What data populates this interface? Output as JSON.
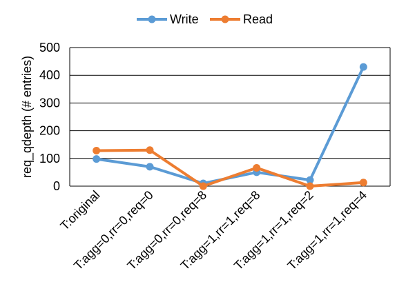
{
  "chart_data": {
    "type": "line",
    "title": "",
    "xlabel": "",
    "ylabel": "req_qdepth (# entries)",
    "ylim": [
      0,
      500
    ],
    "yticks": [
      0,
      100,
      200,
      300,
      400,
      500
    ],
    "grid": true,
    "legend_position": "top",
    "categories": [
      "T:original",
      "T:agg=0,rr=0,req=0",
      "T:agg=0,rr=0,req=8",
      "T:agg=1,rr=1,req=8",
      "T:agg=1,rr=1,req=2",
      "T:agg=1,rr=1,req=4"
    ],
    "series": [
      {
        "name": "Write",
        "color": "#5b9bd5",
        "values": [
          98,
          70,
          10,
          50,
          22,
          430
        ]
      },
      {
        "name": "Read",
        "color": "#ed7d31",
        "values": [
          128,
          130,
          0,
          66,
          0,
          13
        ]
      }
    ]
  }
}
